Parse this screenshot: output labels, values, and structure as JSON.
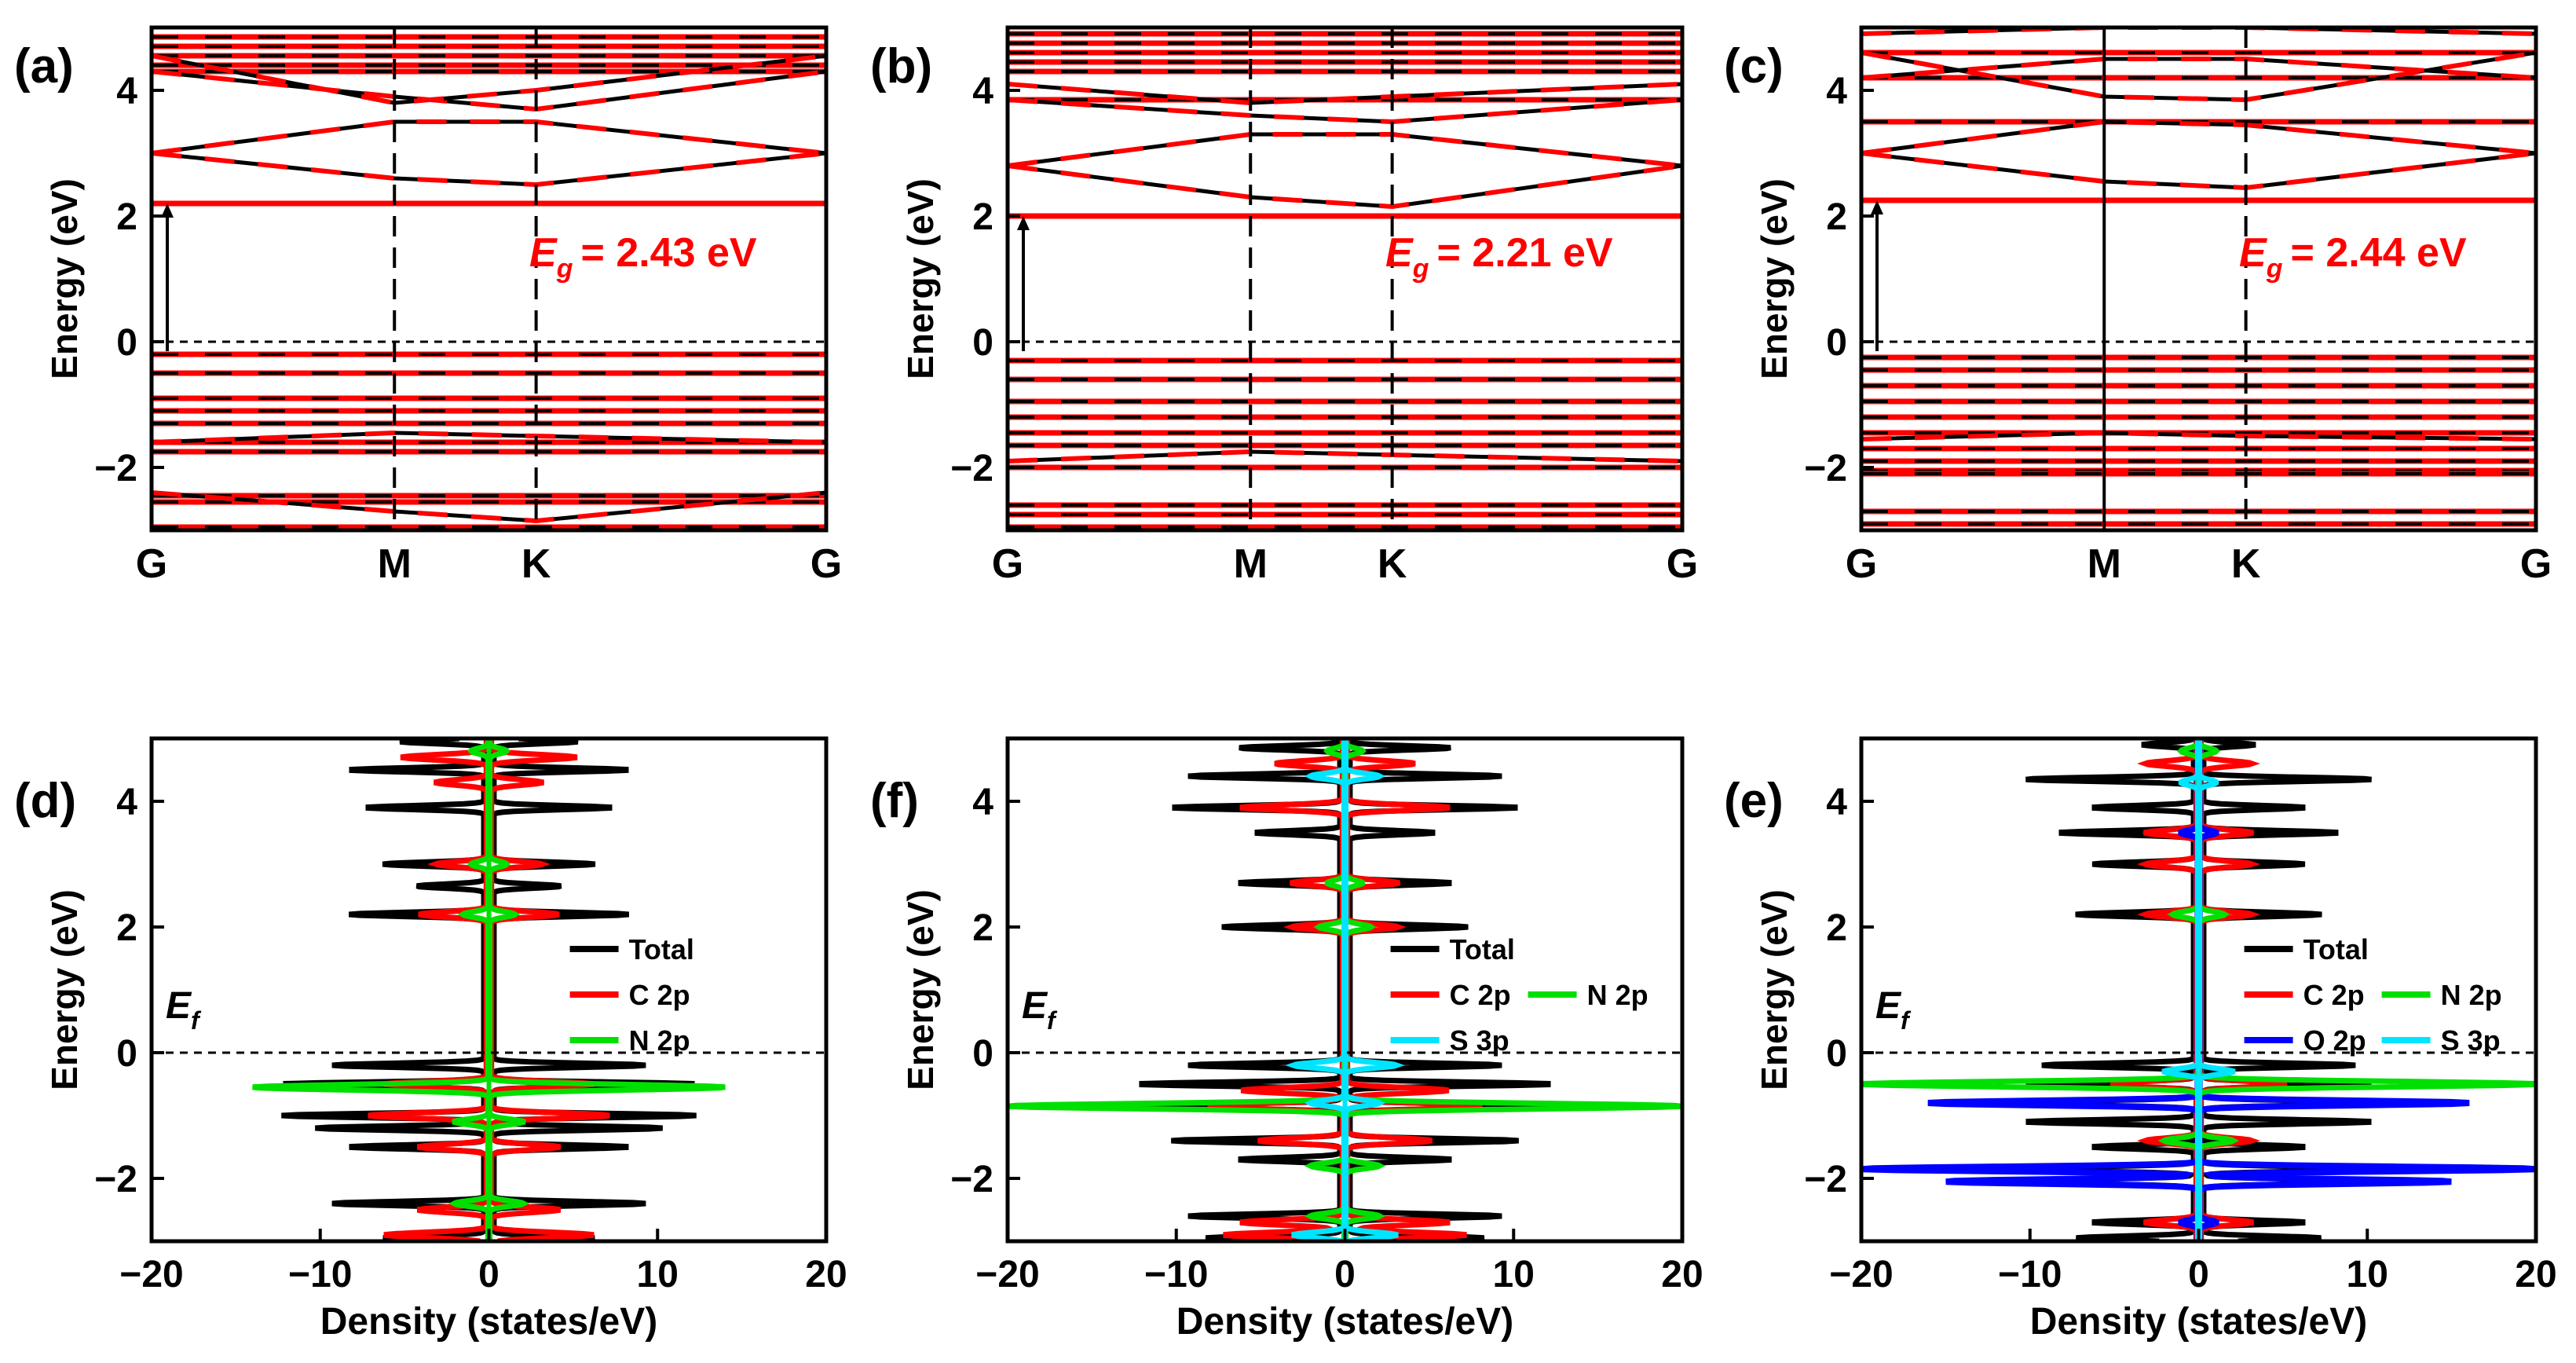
{
  "colors": {
    "black": "#000000",
    "red": "#ff0000",
    "green": "#00e000",
    "blue": "#0000ff",
    "cyan": "#00e5ff"
  },
  "panels_band": [
    {
      "id": "a",
      "label": "(a)",
      "gap_text": "= 2.43 eV",
      "eg_symbol": "E",
      "eg_sub": "g",
      "k_points": [
        {
          "label": "G",
          "pos": 0
        },
        {
          "label": "M",
          "pos": 0.36
        },
        {
          "label": "K",
          "pos": 0.57
        },
        {
          "label": "G",
          "pos": 1
        }
      ],
      "gap_arrow": {
        "from": -0.15,
        "to": 2.2
      },
      "bands_flat": [
        4.85,
        4.7,
        4.55,
        4.4,
        4.3,
        -0.2,
        -0.5,
        -0.9,
        -1.1,
        -1.3,
        -1.6,
        -1.75,
        -2.45,
        -2.55,
        -2.95
      ],
      "bands_dispersive": [
        [
          3.0,
          2.6,
          2.5,
          3.0
        ],
        [
          3.0,
          3.5,
          3.5,
          3.0
        ],
        [
          4.3,
          3.9,
          3.7,
          4.3
        ],
        [
          4.55,
          3.8,
          4.0,
          4.55
        ],
        [
          -2.4,
          -2.7,
          -2.85,
          -2.4
        ],
        [
          -1.6,
          -1.45,
          -1.5,
          -1.6
        ]
      ],
      "cbm_line": 2.2
    },
    {
      "id": "b",
      "label": "(b)",
      "gap_text": "= 2.21 eV",
      "eg_symbol": "E",
      "eg_sub": "g",
      "k_points": [
        {
          "label": "G",
          "pos": 0
        },
        {
          "label": "M",
          "pos": 0.36
        },
        {
          "label": "K",
          "pos": 0.57
        },
        {
          "label": "G",
          "pos": 1
        }
      ],
      "gap_arrow": {
        "from": -0.15,
        "to": 2.0
      },
      "bands_flat": [
        4.9,
        4.75,
        4.6,
        4.45,
        4.3,
        3.85,
        -0.3,
        -0.6,
        -0.95,
        -1.2,
        -1.45,
        -1.65,
        -2.0,
        -2.6,
        -2.75,
        -2.95
      ],
      "bands_dispersive": [
        [
          2.8,
          2.3,
          2.15,
          2.8
        ],
        [
          2.8,
          3.3,
          3.3,
          2.8
        ],
        [
          3.85,
          3.6,
          3.5,
          3.85
        ],
        [
          4.1,
          3.8,
          3.9,
          4.1
        ],
        [
          -1.9,
          -1.75,
          -1.8,
          -1.9
        ]
      ],
      "cbm_line": 2.0
    },
    {
      "id": "c",
      "label": "(c)",
      "gap_text": "= 2.44 eV",
      "eg_symbol": "E",
      "eg_sub": "g",
      "k_points": [
        {
          "label": "G",
          "pos": 0
        },
        {
          "label": "M",
          "pos": 0.36
        },
        {
          "label": "K",
          "pos": 0.57
        },
        {
          "label": "G",
          "pos": 1
        }
      ],
      "gap_arrow": {
        "from": -0.15,
        "to": 2.25
      },
      "bands_flat": [
        4.6,
        4.2,
        3.5,
        -0.25,
        -0.45,
        -0.7,
        -0.95,
        -1.2,
        -1.45,
        -1.7,
        -1.9,
        -2.05,
        -2.1,
        -2.7,
        -2.9
      ],
      "bands_dispersive": [
        [
          3.0,
          2.55,
          2.45,
          3.0
        ],
        [
          3.0,
          3.5,
          3.45,
          3.0
        ],
        [
          4.6,
          3.9,
          3.85,
          4.6
        ],
        [
          4.2,
          4.5,
          4.5,
          4.2
        ],
        [
          4.9,
          5.0,
          5.0,
          4.9
        ],
        [
          -1.55,
          -1.45,
          -1.5,
          -1.55
        ]
      ],
      "cbm_line": 2.25
    }
  ],
  "panels_dos": [
    {
      "id": "d",
      "label": "(d)",
      "ef_symbol": "E",
      "ef_sub": "f",
      "legend": [
        {
          "name": "Total",
          "color": "#000000"
        },
        {
          "name": "C 2p",
          "color": "#ff0000"
        },
        {
          "name": "N 2p",
          "color": "#00e000"
        }
      ],
      "peaks_total": [
        [
          4.95,
          5
        ],
        [
          4.5,
          8
        ],
        [
          3.9,
          7
        ],
        [
          3.0,
          6
        ],
        [
          2.65,
          4
        ],
        [
          2.2,
          8
        ],
        [
          -0.2,
          9
        ],
        [
          -0.5,
          12
        ],
        [
          -1.0,
          12
        ],
        [
          -1.2,
          10
        ],
        [
          -1.5,
          8
        ],
        [
          -2.4,
          9
        ],
        [
          -2.95,
          6
        ]
      ],
      "peaks_c": [
        [
          4.7,
          5
        ],
        [
          4.3,
          3
        ],
        [
          3.0,
          3
        ],
        [
          2.2,
          4
        ],
        [
          -0.5,
          6
        ],
        [
          -1.0,
          7
        ],
        [
          -1.5,
          4
        ],
        [
          -2.5,
          4
        ],
        [
          -2.9,
          6
        ]
      ],
      "peaks_n": [
        [
          4.8,
          1
        ],
        [
          3.0,
          1
        ],
        [
          2.2,
          1.5
        ],
        [
          -0.55,
          14
        ],
        [
          -1.1,
          2
        ],
        [
          -2.4,
          2
        ]
      ],
      "x_ticks": [
        -20,
        -10,
        0,
        10,
        20
      ]
    },
    {
      "id": "f",
      "label": "(f)",
      "ef_symbol": "E",
      "ef_sub": "f",
      "legend": [
        {
          "name": "Total",
          "color": "#000000"
        },
        {
          "name": "C 2p",
          "color": "#ff0000"
        },
        {
          "name": "N 2p",
          "color": "#00e000"
        },
        {
          "name": "S 3p",
          "color": "#00e5ff"
        }
      ],
      "peaks_total": [
        [
          4.85,
          6
        ],
        [
          4.4,
          9
        ],
        [
          3.9,
          10
        ],
        [
          3.5,
          5
        ],
        [
          2.7,
          6
        ],
        [
          2.0,
          7
        ],
        [
          -0.2,
          9
        ],
        [
          -0.5,
          12
        ],
        [
          -0.85,
          14
        ],
        [
          -1.4,
          10
        ],
        [
          -1.7,
          6
        ],
        [
          -2.6,
          9
        ],
        [
          -2.95,
          8
        ]
      ],
      "peaks_c": [
        [
          4.6,
          4
        ],
        [
          3.9,
          6
        ],
        [
          2.7,
          3
        ],
        [
          2.0,
          3
        ],
        [
          -0.6,
          6
        ],
        [
          -0.85,
          8
        ],
        [
          -1.4,
          5
        ],
        [
          -2.7,
          6
        ],
        [
          -2.9,
          7
        ]
      ],
      "peaks_n": [
        [
          4.8,
          1
        ],
        [
          2.7,
          1
        ],
        [
          2.0,
          1.5
        ],
        [
          -0.85,
          20
        ],
        [
          -1.8,
          2
        ],
        [
          -2.6,
          2
        ]
      ],
      "peaks_s": [
        [
          4.4,
          2
        ],
        [
          -0.2,
          3
        ],
        [
          -0.8,
          2
        ],
        [
          -2.9,
          3
        ]
      ],
      "x_ticks": [
        -20,
        -10,
        0,
        10,
        20
      ]
    },
    {
      "id": "e",
      "label": "(e)",
      "ef_symbol": "E",
      "ef_sub": "f",
      "legend": [
        {
          "name": "Total",
          "color": "#000000"
        },
        {
          "name": "C 2p",
          "color": "#ff0000"
        },
        {
          "name": "N 2p",
          "color": "#00e000"
        },
        {
          "name": "O 2p",
          "color": "#0000ff"
        },
        {
          "name": "S 3p",
          "color": "#00e5ff"
        }
      ],
      "peaks_total": [
        [
          4.9,
          3
        ],
        [
          4.35,
          10
        ],
        [
          3.9,
          6
        ],
        [
          3.5,
          8
        ],
        [
          3.0,
          6
        ],
        [
          2.2,
          7
        ],
        [
          -0.2,
          9
        ],
        [
          -0.5,
          10
        ],
        [
          -0.8,
          12
        ],
        [
          -1.1,
          10
        ],
        [
          -1.5,
          6
        ],
        [
          -1.85,
          12
        ],
        [
          -2.05,
          12
        ],
        [
          -2.7,
          6
        ],
        [
          -2.95,
          7
        ]
      ],
      "peaks_c": [
        [
          4.6,
          3
        ],
        [
          3.5,
          3
        ],
        [
          3.0,
          3
        ],
        [
          2.2,
          3
        ],
        [
          -0.5,
          5
        ],
        [
          -1.4,
          3
        ],
        [
          -2.7,
          3
        ]
      ],
      "peaks_n": [
        [
          4.8,
          1
        ],
        [
          2.2,
          1.5
        ],
        [
          -0.5,
          20
        ],
        [
          -1.4,
          2
        ]
      ],
      "peaks_o": [
        [
          3.5,
          1
        ],
        [
          -0.8,
          16
        ],
        [
          -1.85,
          20
        ],
        [
          -2.05,
          15
        ],
        [
          -2.7,
          1
        ]
      ],
      "peaks_s": [
        [
          4.3,
          1
        ],
        [
          -0.3,
          2
        ]
      ],
      "x_ticks": [
        -20,
        -10,
        0,
        10,
        20
      ]
    }
  ],
  "axes": {
    "band_ylabel": "Energy (eV)",
    "dos_ylabel": "Energy (eV)",
    "dos_xlabel": "Density (states/eV)",
    "ylim": [
      -3,
      5
    ],
    "y_ticks": [
      -2,
      0,
      2,
      4
    ],
    "xlim_dos": [
      -20,
      20
    ]
  }
}
